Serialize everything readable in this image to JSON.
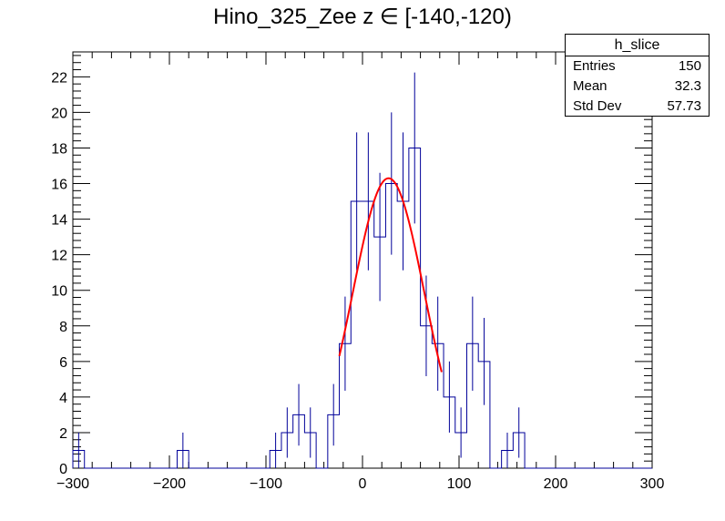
{
  "chart_data": {
    "type": "bar",
    "title": "Hino_325_Zee z  ∈ [-140,-120)",
    "xlabel": "",
    "ylabel": "",
    "xlim": [
      -300,
      300
    ],
    "ylim": [
      0,
      23.4
    ],
    "bin_width": 12,
    "x_ticks": [
      -300,
      -200,
      -100,
      0,
      100,
      200,
      300
    ],
    "y_ticks": [
      0,
      2,
      4,
      6,
      8,
      10,
      12,
      14,
      16,
      18,
      20,
      22
    ],
    "grid": false,
    "legend": "none",
    "histogram_color": "#000099",
    "fit_color": "#ff0000",
    "bins": [
      {
        "low": -300,
        "count": 1
      },
      {
        "low": -192,
        "count": 1
      },
      {
        "low": -96,
        "count": 1
      },
      {
        "low": -84,
        "count": 2
      },
      {
        "low": -72,
        "count": 3
      },
      {
        "low": -60,
        "count": 2
      },
      {
        "low": -36,
        "count": 3
      },
      {
        "low": -24,
        "count": 7
      },
      {
        "low": -12,
        "count": 15
      },
      {
        "low": 0,
        "count": 15
      },
      {
        "low": 12,
        "count": 13
      },
      {
        "low": 24,
        "count": 16
      },
      {
        "low": 36,
        "count": 15
      },
      {
        "low": 48,
        "count": 18
      },
      {
        "low": 60,
        "count": 8
      },
      {
        "low": 72,
        "count": 7
      },
      {
        "low": 84,
        "count": 4
      },
      {
        "low": 96,
        "count": 2
      },
      {
        "low": 108,
        "count": 7
      },
      {
        "low": 120,
        "count": 6
      },
      {
        "low": 144,
        "count": 1
      },
      {
        "low": 156,
        "count": 2
      }
    ],
    "fit": {
      "function": "gaussian",
      "constant": 16.3,
      "mean": 27,
      "sigma": 37,
      "range": [
        -24,
        82
      ]
    },
    "stats": {
      "name": "h_slice",
      "rows": [
        {
          "label": "Entries",
          "value": "150"
        },
        {
          "label": "Mean",
          "value": "32.3"
        },
        {
          "label": "Std Dev",
          "value": "57.73"
        }
      ]
    }
  }
}
